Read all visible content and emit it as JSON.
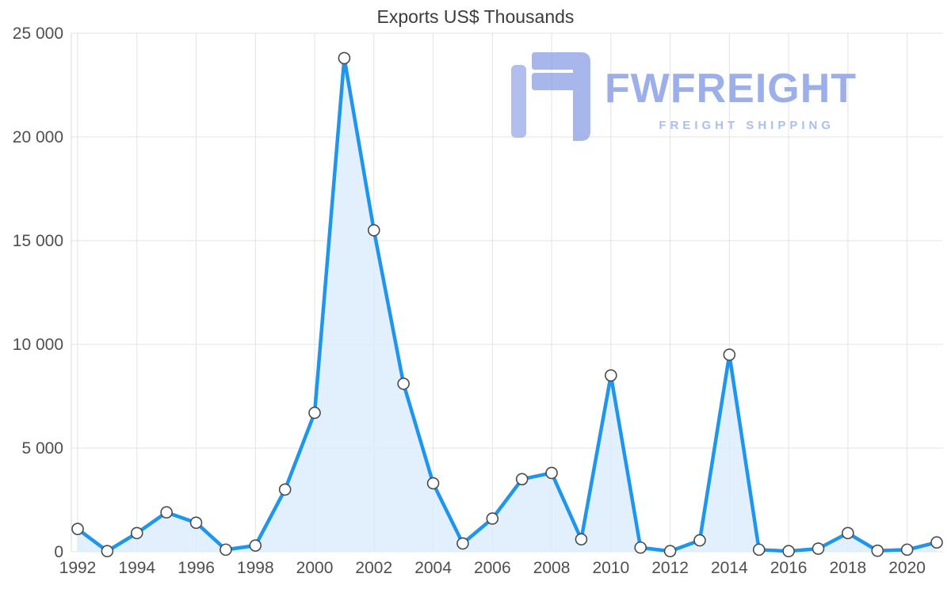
{
  "title": "Exports US$ Thousands",
  "watermark": {
    "brand": "FWFREIGHT",
    "tagline": "FREIGHT SHIPPING",
    "color": "#8da2e8"
  },
  "chart_data": {
    "type": "area",
    "title": "Exports US$ Thousands",
    "xlabel": "",
    "ylabel": "US$ Thousands",
    "x": [
      1992,
      1993,
      1994,
      1995,
      1996,
      1997,
      1998,
      1999,
      2000,
      2001,
      2002,
      2003,
      2004,
      2005,
      2006,
      2007,
      2008,
      2009,
      2010,
      2011,
      2012,
      2013,
      2014,
      2015,
      2016,
      2017,
      2018,
      2019,
      2020,
      2021
    ],
    "values": [
      1100,
      30,
      900,
      1900,
      1400,
      100,
      300,
      3000,
      6700,
      23800,
      15500,
      8100,
      3300,
      400,
      1600,
      3500,
      3800,
      600,
      8500,
      200,
      30,
      550,
      9500,
      100,
      30,
      150,
      900,
      50,
      100,
      450
    ],
    "x_ticks": [
      1992,
      1994,
      1996,
      1998,
      2000,
      2002,
      2004,
      2006,
      2008,
      2010,
      2012,
      2014,
      2016,
      2018,
      2020
    ],
    "y_ticks": [
      0,
      5000,
      10000,
      15000,
      20000,
      25000
    ],
    "y_tick_labels": [
      "0",
      "5 000",
      "10 000",
      "15 000",
      "20 000",
      "25 000"
    ],
    "ylim": [
      0,
      25000
    ],
    "grid": true,
    "legend": "none",
    "line_color": "#1e96ee",
    "fill_color": "#d9ecfb",
    "marker_fill": "#ffffff",
    "marker_stroke": "#4a4a4a"
  }
}
